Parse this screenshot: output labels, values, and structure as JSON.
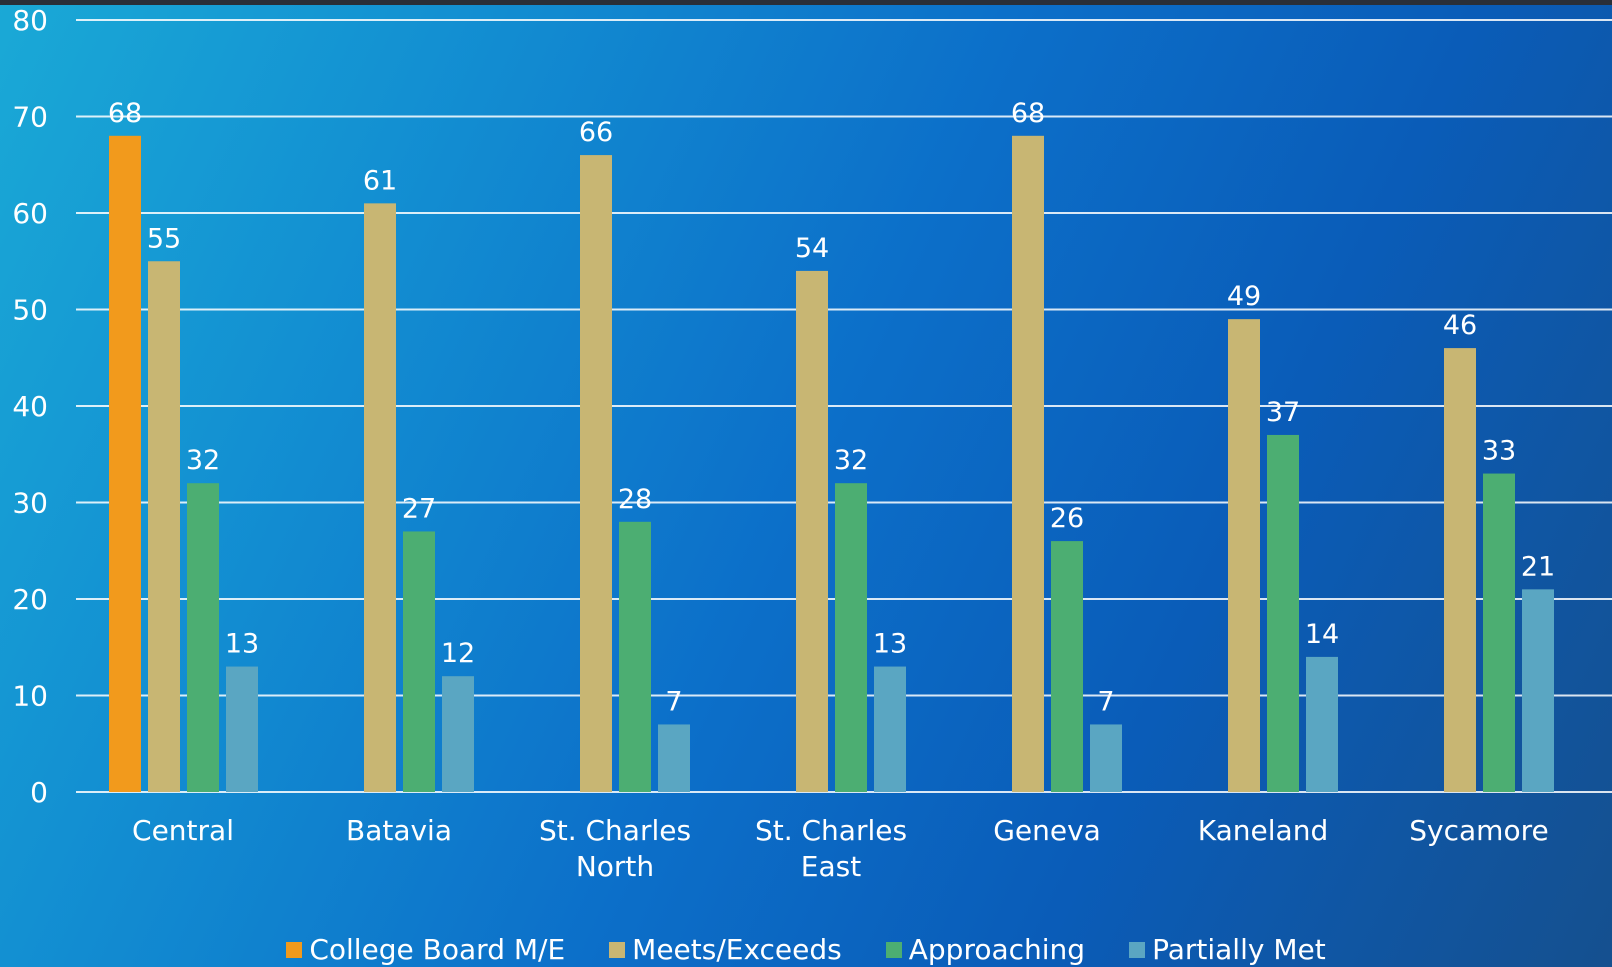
{
  "chart_data": {
    "type": "bar",
    "title": "",
    "xlabel": "",
    "ylabel": "",
    "ylim": [
      0,
      80
    ],
    "yticks": [
      0,
      10,
      20,
      30,
      40,
      50,
      60,
      70,
      80
    ],
    "grid": true,
    "legend_position": "bottom",
    "categories": [
      [
        "Central"
      ],
      [
        "Batavia"
      ],
      [
        "St. Charles",
        "North"
      ],
      [
        "St. Charles",
        "East"
      ],
      [
        "Geneva"
      ],
      [
        "Kaneland"
      ],
      [
        "Sycamore"
      ]
    ],
    "series": [
      {
        "name": "College Board M/E",
        "color": "#f29a1c",
        "values": [
          68,
          null,
          null,
          null,
          null,
          null,
          null
        ]
      },
      {
        "name": "Meets/Exceeds",
        "color": "#c8b673",
        "values": [
          55,
          61,
          66,
          54,
          68,
          49,
          46
        ]
      },
      {
        "name": "Approaching",
        "color": "#4cae72",
        "values": [
          32,
          27,
          28,
          32,
          26,
          37,
          33
        ]
      },
      {
        "name": "Partially Met",
        "color": "#5aa6c2",
        "values": [
          13,
          12,
          7,
          13,
          7,
          14,
          21
        ]
      }
    ]
  }
}
